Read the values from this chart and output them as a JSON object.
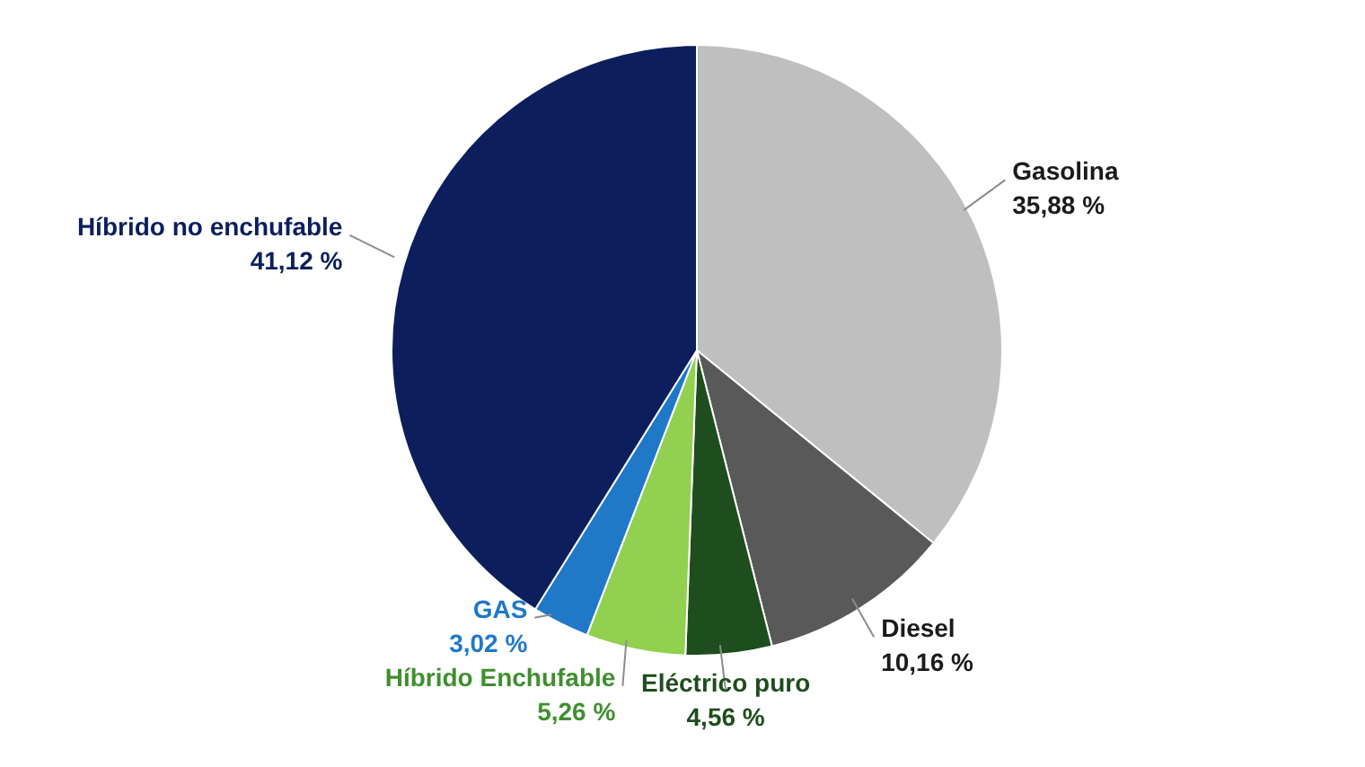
{
  "chart_data": {
    "type": "pie",
    "categories": [
      "Gasolina",
      "Diesel",
      "Eléctrico puro",
      "Híbrido Enchufable",
      "GAS",
      "Híbrido no enchufable"
    ],
    "values": [
      35.88,
      10.16,
      4.56,
      5.26,
      3.02,
      41.12
    ],
    "value_labels": [
      "35,88 %",
      "10,16 %",
      "4,56 %",
      "5,26 %",
      "3,02 %",
      "41,12 %"
    ],
    "colors": [
      "#bfbfbf",
      "#595959",
      "#1e4d1e",
      "#92d050",
      "#1f78c8",
      "#0c1f5c"
    ]
  }
}
